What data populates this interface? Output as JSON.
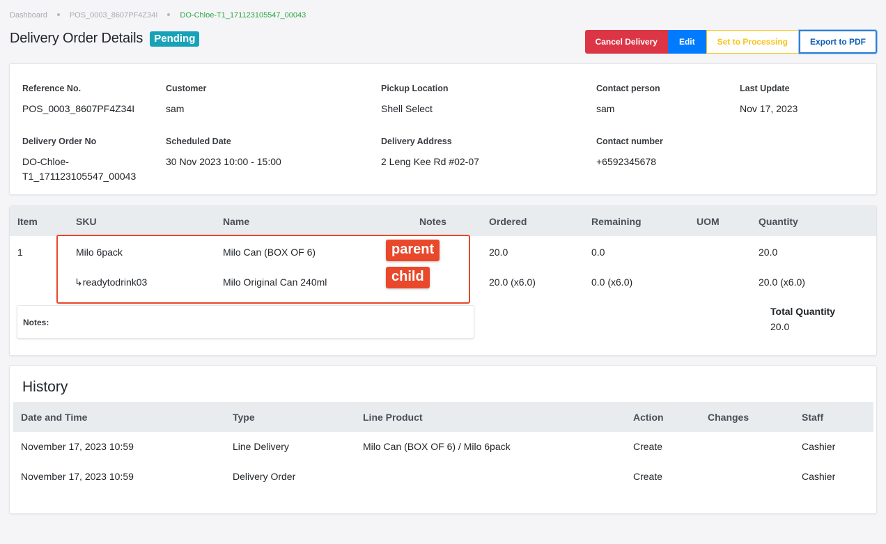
{
  "breadcrumb": {
    "items": [
      "Dashboard",
      "POS_0003_8607PF4Z34I",
      "DO-Chloe-T1_171123105547_00043"
    ]
  },
  "header": {
    "title": "Delivery Order Details",
    "status": "Pending"
  },
  "actions": {
    "cancel": "Cancel Delivery",
    "edit": "Edit",
    "processing": "Set to Processing",
    "export": "Export to PDF"
  },
  "info": {
    "reference_label": "Reference No.",
    "reference": "POS_0003_8607PF4Z34I",
    "customer_label": "Customer",
    "customer": "sam",
    "pickup_label": "Pickup Location",
    "pickup": "Shell Select",
    "contact_person_label": "Contact person",
    "contact_person": "sam",
    "last_update_label": "Last Update",
    "last_update": "Nov 17, 2023",
    "do_no_label": "Delivery Order No",
    "do_no_line1": "DO-Chloe-",
    "do_no_line2": "T1_171123105547_00043",
    "scheduled_label": "Scheduled Date",
    "scheduled": "30 Nov 2023 10:00 - 15:00",
    "address_label": "Delivery Address",
    "address": "2 Leng Kee Rd #02-07",
    "contact_number_label": "Contact number",
    "contact_number": "+6592345678"
  },
  "items": {
    "headers": {
      "item": "Item",
      "sku": "SKU",
      "name": "Name",
      "notes": "Notes",
      "ordered": "Ordered",
      "remaining": "Remaining",
      "uom": "UOM",
      "quantity": "Quantity"
    },
    "rows": [
      {
        "item": "1",
        "sku": "Milo 6pack",
        "name": "Milo Can (BOX OF 6)",
        "ordered": "20.0",
        "remaining": "0.0",
        "quantity": "20.0"
      },
      {
        "child_arrow": "↳",
        "sku": "readytodrink03",
        "name": "Milo Original Can 240ml",
        "ordered": "20.0 (x6.0)",
        "remaining": "0.0 (x6.0)",
        "quantity": "20.0 (x6.0)"
      }
    ],
    "annotation_parent": "parent",
    "annotation_child": "child",
    "notes_label": "Notes:",
    "total_label": "Total Quantity",
    "total_value": "20.0"
  },
  "history": {
    "title": "History",
    "headers": {
      "datetime": "Date and Time",
      "type": "Type",
      "line_product": "Line Product",
      "action": "Action",
      "changes": "Changes",
      "staff": "Staff"
    },
    "rows": [
      {
        "datetime": "November 17, 2023 10:59",
        "type": "Line Delivery",
        "line_product": "Milo Can (BOX OF 6) / Milo 6pack",
        "action": "Create",
        "staff": "Cashier"
      },
      {
        "datetime": "November 17, 2023 10:59",
        "type": "Delivery Order",
        "line_product": "",
        "action": "Create",
        "staff": "Cashier"
      }
    ]
  }
}
